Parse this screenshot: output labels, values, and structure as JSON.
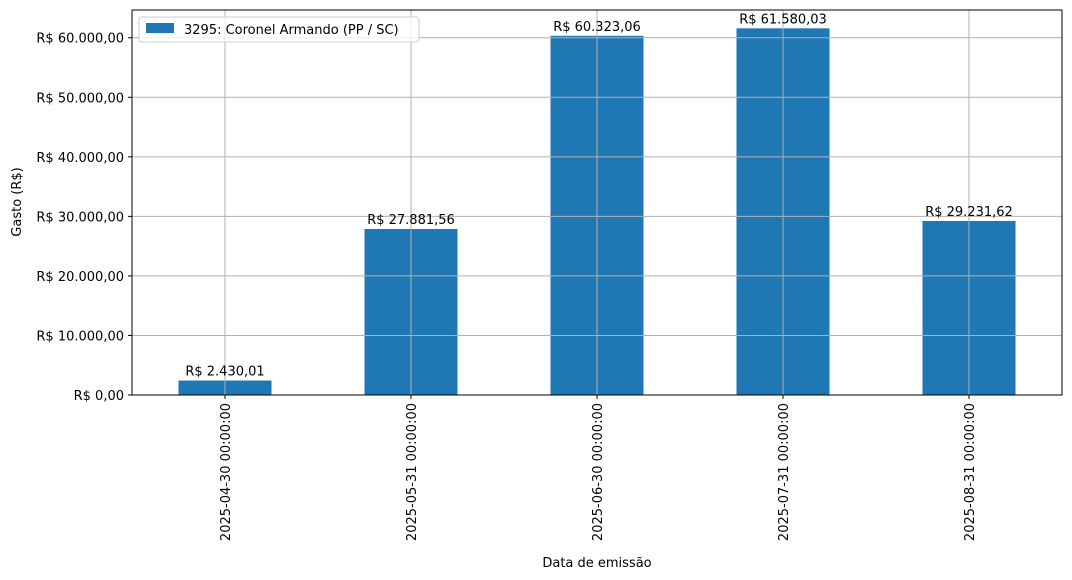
{
  "chart_data": {
    "type": "bar",
    "title": "",
    "xlabel": "Data de emissão",
    "ylabel": "Gasto (R$)",
    "categories": [
      "2025-04-30 00:00:00",
      "2025-05-31 00:00:00",
      "2025-06-30 00:00:00",
      "2025-07-31 00:00:00",
      "2025-08-31 00:00:00"
    ],
    "series": [
      {
        "name": "3295: Coronel Armando (PP / SC)",
        "color": "#1f77b4",
        "values": [
          2430.01,
          27881.56,
          60323.06,
          61580.03,
          29231.62
        ],
        "labels": [
          "R$ 2.430,01",
          "R$ 27.881,56",
          "R$ 60.323,06",
          "R$ 61.580,03",
          "R$ 29.231,62"
        ]
      }
    ],
    "ylim": [
      0,
      64659
    ],
    "yticks": [
      0,
      10000,
      20000,
      30000,
      40000,
      50000,
      60000
    ],
    "ytick_labels": [
      "R$ 0,00",
      "R$ 10.000,00",
      "R$ 20.000,00",
      "R$ 30.000,00",
      "R$ 40.000,00",
      "R$ 50.000,00",
      "R$ 60.000,00"
    ],
    "grid": true,
    "legend_position": "upper left",
    "xtick_rotation": 90
  }
}
